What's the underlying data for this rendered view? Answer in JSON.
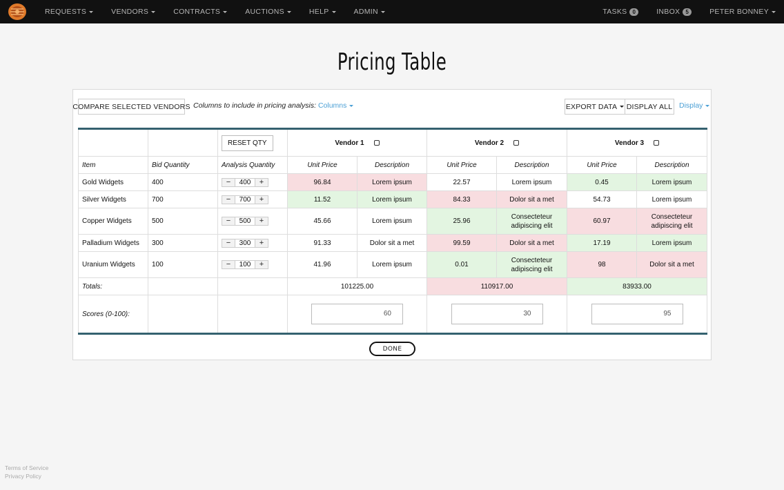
{
  "nav": {
    "items": [
      {
        "label": "REQUESTS"
      },
      {
        "label": "VENDORS"
      },
      {
        "label": "CONTRACTS"
      },
      {
        "label": "AUCTIONS"
      },
      {
        "label": "HELP"
      },
      {
        "label": "ADMIN"
      }
    ],
    "tasks_label": "TASKS",
    "tasks_count": "0",
    "inbox_label": "INBOX",
    "inbox_count": "5",
    "user_name": "PETER BONNEY",
    "logo_icon": "company-logo-icon"
  },
  "page_title": "Pricing Table",
  "toolbar": {
    "compare_label": "COMPARE SELECTED VENDORS",
    "columns_prompt": "Columns to include in pricing analysis:",
    "columns_link": "Columns",
    "export_label": "EXPORT DATA",
    "display_all_label": "DISPLAY ALL",
    "display_link": "Display"
  },
  "table": {
    "reset_label": "RESET QTY",
    "vendors": [
      {
        "name": "Vendor 1"
      },
      {
        "name": "Vendor 2"
      },
      {
        "name": "Vendor 3"
      }
    ],
    "headers": {
      "item": "Item",
      "bid_quantity": "Bid Quantity",
      "analysis_quantity": "Analysis Quantity",
      "unit_price": "Unit Price",
      "description": "Description"
    },
    "rows": [
      {
        "item": "Gold Widgets",
        "bid": "400",
        "qty": "400",
        "v1_price": "96.84",
        "v1_desc": "Lorem ipsum",
        "v2_price": "22.57",
        "v2_desc": "Lorem ipsum",
        "v3_price": "0.45",
        "v3_desc": "Lorem ipsum"
      },
      {
        "item": "Silver Widgets",
        "bid": "700",
        "qty": "700",
        "v1_price": "11.52",
        "v1_desc": "Lorem ipsum",
        "v2_price": "84.33",
        "v2_desc": "Dolor sit a met",
        "v3_price": "54.73",
        "v3_desc": "Lorem ipsum"
      },
      {
        "item": "Copper Widgets",
        "bid": "500",
        "qty": "500",
        "v1_price": "45.66",
        "v1_desc": "Lorem ipsum",
        "v2_price": "25.96",
        "v2_desc": "Consecteteur adipiscing elit",
        "v3_price": "60.97",
        "v3_desc": "Consecteteur adipiscing elit"
      },
      {
        "item": "Palladium Widgets",
        "bid": "300",
        "qty": "300",
        "v1_price": "91.33",
        "v1_desc": "Dolor sit a met",
        "v2_price": "99.59",
        "v2_desc": "Dolor sit a met",
        "v3_price": "17.19",
        "v3_desc": "Lorem ipsum"
      },
      {
        "item": "Uranium Widgets",
        "bid": "100",
        "qty": "100",
        "v1_price": "41.96",
        "v1_desc": "Lorem ipsum",
        "v2_price": "0.01",
        "v2_desc": "Consecteteur adipiscing elit",
        "v3_price": "98",
        "v3_desc": "Dolor sit a met"
      }
    ],
    "totals_label": "Totals:",
    "totals": [
      "101225.00",
      "110917.00",
      "83933.00"
    ],
    "scores_label": "Scores (0-100):",
    "scores": [
      "60",
      "30",
      "95"
    ],
    "minus_glyph": "−",
    "plus_glyph": "+"
  },
  "done_label": "DONE",
  "footer": {
    "terms": "Terms of Service",
    "privacy": "Privacy Policy"
  },
  "colors": {
    "nav_bg": "#111111",
    "table_border_accent": "#34616f",
    "cell_red": "#f8dde0",
    "cell_green": "#e3f5e1",
    "link_blue": "#4a9fd5"
  }
}
